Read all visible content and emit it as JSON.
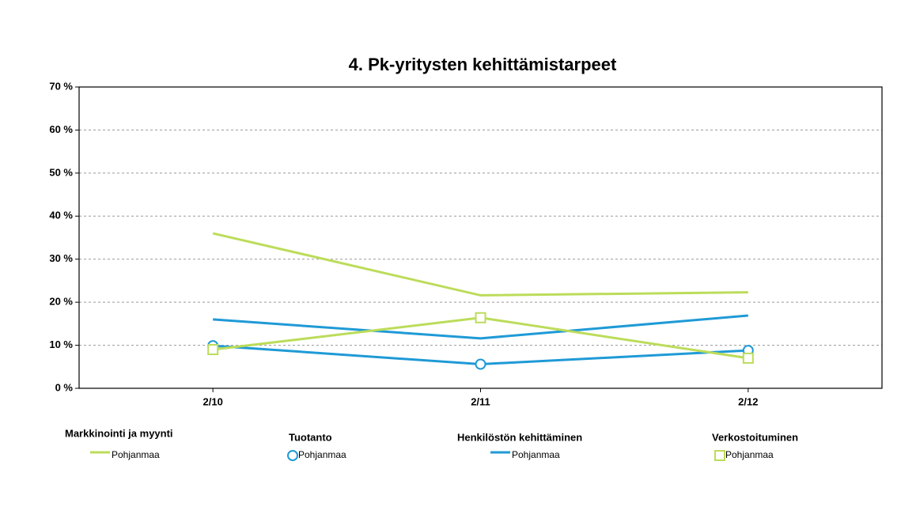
{
  "chart_data": {
    "type": "line",
    "title": "4. Pk-yritysten kehittämistarpeet",
    "categories": [
      "2/10",
      "2/11",
      "2/12"
    ],
    "series": [
      {
        "name": "Markkinointi ja myynti",
        "label": "Pohjanmaa",
        "color": "#bcdc5a",
        "marker": "none",
        "values": [
          36,
          21.6,
          22.3
        ]
      },
      {
        "name": "Tuotanto",
        "label": "Pohjanmaa",
        "color": "#1f9ad6",
        "marker": "circle",
        "values": [
          9.9,
          5.6,
          8.8
        ]
      },
      {
        "name": "Henkilöstön kehittäminen",
        "label": "Pohjanmaa",
        "color": "#1f9ad6",
        "marker": "none",
        "values": [
          16,
          11.6,
          16.9
        ]
      },
      {
        "name": "Verkostoituminen",
        "label": "Pohjanmaa",
        "color": "#bcdc5a",
        "marker": "square",
        "values": [
          9,
          16.4,
          7
        ]
      }
    ],
    "ylim": [
      0,
      70
    ],
    "yticks": [
      {
        "value": 0,
        "label": "0 %"
      },
      {
        "value": 10,
        "label": "10 %"
      },
      {
        "value": 20,
        "label": "20 %"
      },
      {
        "value": 30,
        "label": "30 %"
      },
      {
        "value": 40,
        "label": "40 %"
      },
      {
        "value": 50,
        "label": "50 %"
      },
      {
        "value": 60,
        "label": "60 %"
      },
      {
        "value": 70,
        "label": "70 %"
      }
    ],
    "grid": true
  }
}
